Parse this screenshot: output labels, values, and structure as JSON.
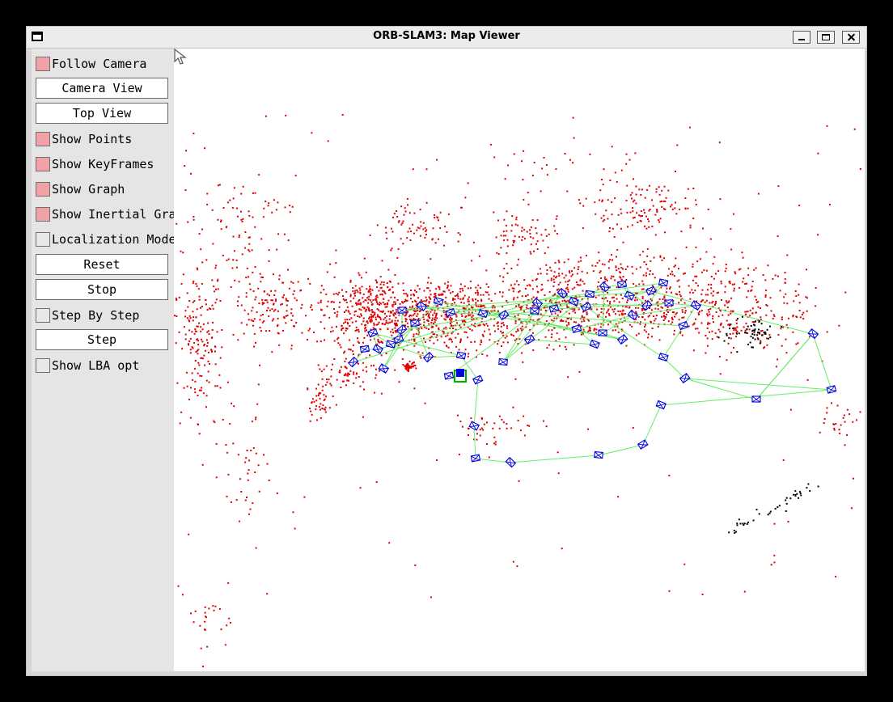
{
  "window": {
    "title": "ORB-SLAM3: Map Viewer"
  },
  "panel": {
    "items": [
      {
        "type": "checkbox",
        "label": "Follow Camera",
        "checked": true
      },
      {
        "type": "button",
        "label": "Camera View"
      },
      {
        "type": "button",
        "label": "Top View"
      },
      {
        "type": "checkbox",
        "label": "Show Points",
        "checked": true
      },
      {
        "type": "checkbox",
        "label": "Show KeyFrames",
        "checked": true
      },
      {
        "type": "checkbox",
        "label": "Show Graph",
        "checked": true
      },
      {
        "type": "checkbox",
        "label": "Show Inertial Graph",
        "checked": true
      },
      {
        "type": "checkbox",
        "label": "Localization Mode",
        "checked": false
      },
      {
        "type": "button",
        "label": "Reset"
      },
      {
        "type": "button",
        "label": "Stop"
      },
      {
        "type": "checkbox",
        "label": "Step By Step",
        "checked": false
      },
      {
        "type": "button",
        "label": "Step"
      },
      {
        "type": "checkbox",
        "label": "Show LBA opt",
        "checked": false
      }
    ]
  },
  "colors": {
    "map_points": "#e00000",
    "reference_points": "#000000",
    "keyframes": "#0000e0",
    "graph_edges": "#66ee66",
    "current_camera": "#00b000",
    "checked_box": "#f2a2a6"
  },
  "icons": {
    "window": "window-icon",
    "cursor": "mouse-pointer-icon"
  }
}
